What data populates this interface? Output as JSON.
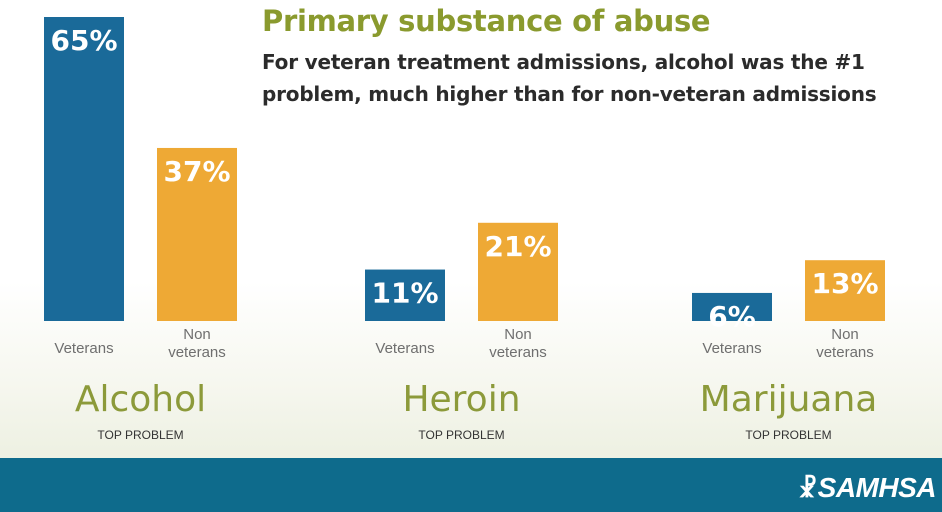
{
  "header": {
    "title": "Primary substance of abuse",
    "subtitle": "For veteran treatment admissions, alcohol was the #1 problem, much higher than for non-veteran admissions"
  },
  "footer": {
    "logo_text": "SAMHSA",
    "logo_mark": "☧",
    "background_color": "#0e6b8c"
  },
  "chart_data": {
    "type": "bar",
    "categories": [
      "Alcohol",
      "Heroin",
      "Marijuana"
    ],
    "category_subtitle": "TOP PROBLEM",
    "bar_labels": [
      {
        "line1": "Veterans",
        "line2": ""
      },
      {
        "line1": "Non",
        "line2": "veterans"
      }
    ],
    "series": [
      {
        "values": [
          65,
          11,
          6
        ],
        "value_labels": [
          "65%",
          "11%",
          "6%"
        ],
        "color": "#1a6a99"
      },
      {
        "values": [
          37,
          21,
          13
        ],
        "value_labels": [
          "37%",
          "21%",
          "13%"
        ],
        "color": "#eea935"
      }
    ],
    "unit": "%",
    "ylim": [
      0,
      65
    ],
    "grid": false,
    "legend": "none"
  }
}
